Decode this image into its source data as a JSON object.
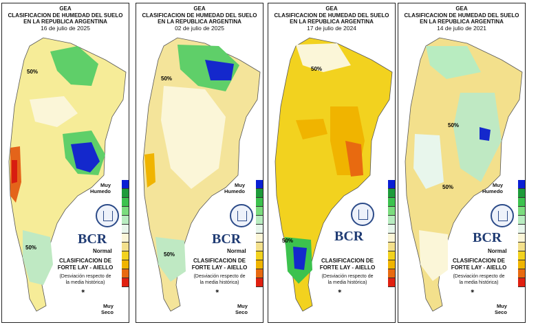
{
  "title": {
    "line1": "GEA",
    "line2": "CLASIFICACION DE HUMEDAD DEL SUELO",
    "line3": "EN LA REPUBLICA ARGENTINA"
  },
  "panels": [
    {
      "date": "16 de julio de 2025"
    },
    {
      "date": "02 de julio de 2025"
    },
    {
      "date": "17 de julio de 2024"
    },
    {
      "date": "14 de julio de 2021"
    }
  ],
  "legend": {
    "top_label_1": "Muy",
    "top_label_2": "Humedo",
    "normal_label": "Normal",
    "bottom_label_1": "Muy",
    "bottom_label_2": "Seco",
    "colors": [
      "#0a1fd4",
      "#1e9b3a",
      "#3cc24e",
      "#7bdc7e",
      "#b8ecc0",
      "#e8f6ec",
      "#fbf6d8",
      "#f3e08c",
      "#f2d21f",
      "#f0b400",
      "#e86a10",
      "#e02010"
    ]
  },
  "branding": {
    "logo_text": "BCR",
    "classification_line1": "CLASIFICACION DE",
    "classification_line2": "FORTE LAY - AIELLO",
    "deviation_line1": "(Desviación respecto de",
    "deviation_line2": "la media histórica)"
  },
  "contour_label": "50%"
}
